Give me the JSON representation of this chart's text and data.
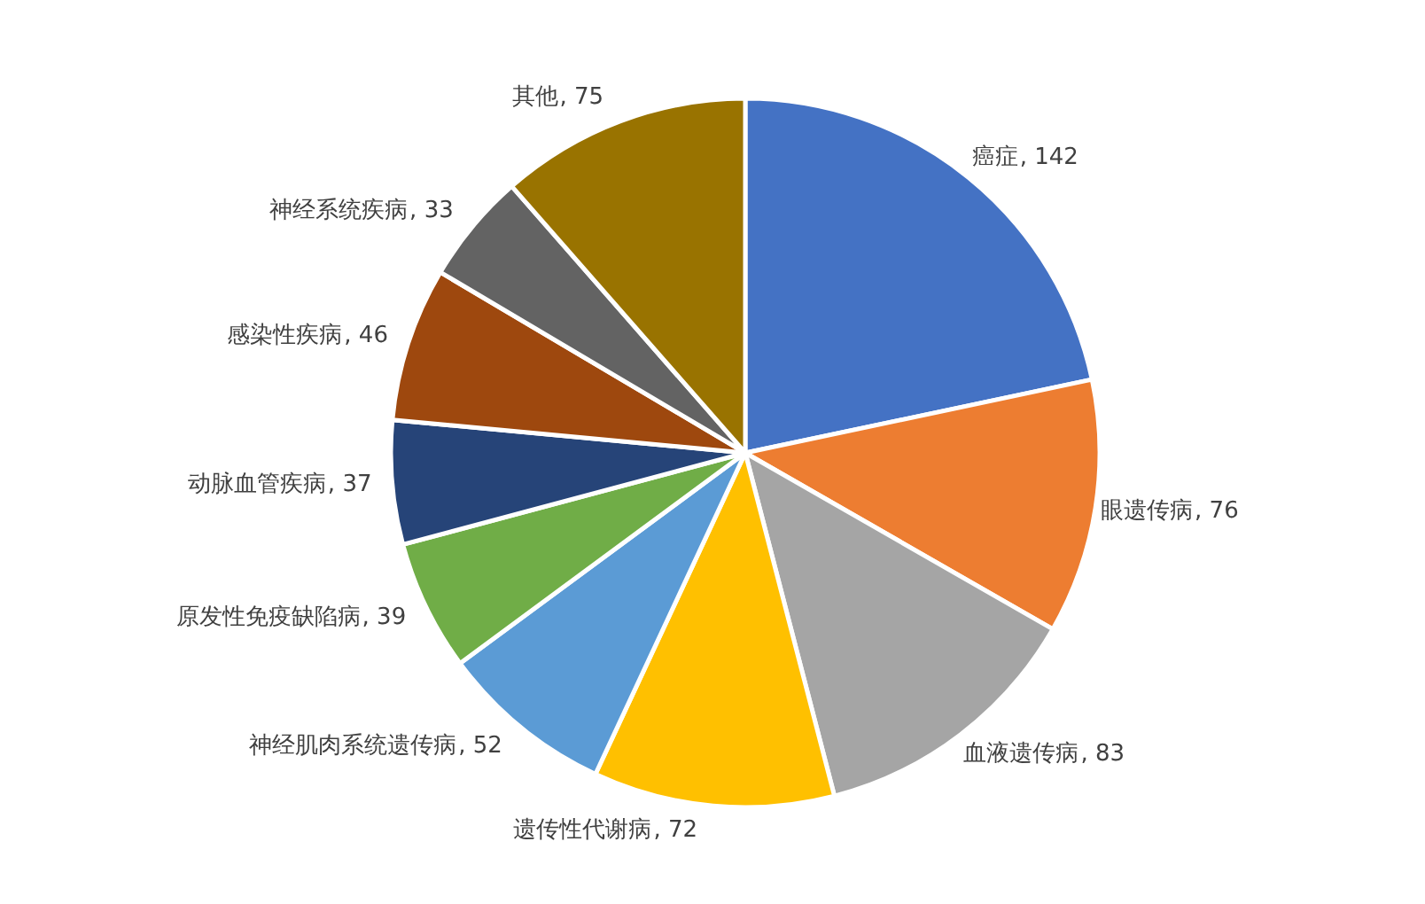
{
  "chart_data": {
    "type": "pie",
    "categories": [
      "癌症",
      "眼遗传病",
      "血液遗传病",
      "遗传性代谢病",
      "神经肌肉系统遗传病",
      "原发性免疫缺陷病",
      "动脉血管疾病",
      "感染性疾病",
      "神经系统疾病",
      "其他"
    ],
    "values": [
      142,
      76,
      83,
      72,
      52,
      39,
      37,
      46,
      33,
      75
    ],
    "colors": [
      "#4472c4",
      "#ed7d31",
      "#a5a5a5",
      "#ffc000",
      "#5b9bd5",
      "#70ad47",
      "#264478",
      "#9e480e",
      "#636363",
      "#997300"
    ],
    "value_labels": [
      ", 142",
      ", 76",
      ", 83",
      ", 72",
      ", 52",
      ", 39",
      ", 37",
      ", 46",
      ", 33",
      ", 75"
    ]
  }
}
